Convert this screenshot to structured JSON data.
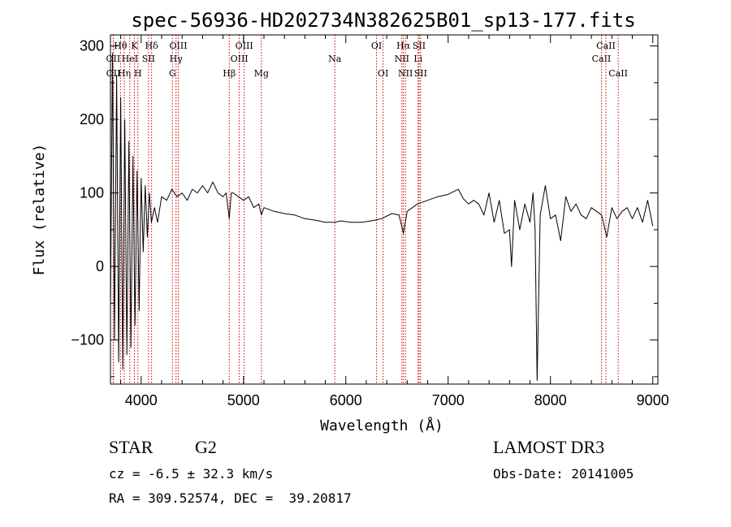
{
  "chart_data": {
    "type": "line",
    "title": "spec-56936-HD202734N382625B01_sp13-177.fits",
    "xlabel": "Wavelength (Å)",
    "ylabel": "Flux (relative)",
    "xlim": [
      3700,
      9050
    ],
    "ylim": [
      -160,
      315
    ],
    "x_ticks": [
      4000,
      5000,
      6000,
      7000,
      8000,
      9000
    ],
    "y_ticks": [
      -100,
      0,
      100,
      200,
      300
    ],
    "grid": false,
    "line_color": "#000000",
    "marker_color": "#cc0000",
    "series": [
      {
        "x": [
          3700,
          3720,
          3740,
          3760,
          3780,
          3800,
          3820,
          3840,
          3860,
          3880,
          3900,
          3920,
          3940,
          3960,
          3980,
          4000,
          4020,
          4040,
          4060,
          4080,
          4100,
          4130,
          4160,
          4200,
          4250,
          4300,
          4350,
          4400,
          4450,
          4500,
          4550,
          4600,
          4650,
          4700,
          4750,
          4800,
          4830,
          4861,
          4880,
          4900,
          4950,
          5000,
          5050,
          5100,
          5150,
          5175,
          5200,
          5300,
          5400,
          5500,
          5600,
          5700,
          5800,
          5893,
          5950,
          6050,
          6150,
          6250,
          6350,
          6450,
          6520,
          6563,
          6600,
          6700,
          6800,
          6900,
          7000,
          7100,
          7150,
          7200,
          7250,
          7300,
          7350,
          7400,
          7450,
          7500,
          7550,
          7600,
          7620,
          7650,
          7700,
          7750,
          7800,
          7830,
          7850,
          7870,
          7900,
          7950,
          8000,
          8050,
          8100,
          8150,
          8200,
          8250,
          8300,
          8350,
          8400,
          8450,
          8500,
          8550,
          8600,
          8650,
          8700,
          8750,
          8800,
          8850,
          8900,
          8950,
          9000
        ],
        "y": [
          -60,
          290,
          -100,
          260,
          -130,
          230,
          -140,
          200,
          -120,
          170,
          -110,
          150,
          -80,
          130,
          -60,
          120,
          20,
          110,
          40,
          100,
          60,
          80,
          60,
          95,
          90,
          105,
          95,
          100,
          90,
          105,
          100,
          110,
          100,
          115,
          100,
          95,
          100,
          65,
          100,
          100,
          95,
          90,
          95,
          80,
          85,
          70,
          80,
          75,
          72,
          70,
          65,
          63,
          60,
          60,
          62,
          60,
          60,
          62,
          65,
          72,
          70,
          45,
          75,
          85,
          90,
          95,
          98,
          105,
          92,
          85,
          90,
          85,
          70,
          100,
          60,
          90,
          45,
          50,
          0,
          90,
          50,
          85,
          60,
          100,
          50,
          -155,
          70,
          110,
          65,
          70,
          35,
          95,
          75,
          85,
          70,
          65,
          80,
          75,
          70,
          40,
          80,
          65,
          75,
          80,
          65,
          80,
          60,
          90,
          55
        ]
      }
    ],
    "line_markers": [
      {
        "label": "OII",
        "x": 3727,
        "row": 2
      },
      {
        "label": "OII",
        "x": 3729,
        "row": 3
      },
      {
        "label": "Hθ",
        "x": 3798,
        "row": 1
      },
      {
        "label": "Hη",
        "x": 3835,
        "row": 3
      },
      {
        "label": "HeI",
        "x": 3889,
        "row": 2
      },
      {
        "label": "K",
        "x": 3934,
        "row": 1
      },
      {
        "label": "H",
        "x": 3968,
        "row": 3
      },
      {
        "label": "SII",
        "x": 4072,
        "row": 2
      },
      {
        "label": "Hδ",
        "x": 4102,
        "row": 1
      },
      {
        "label": "G",
        "x": 4305,
        "row": 3
      },
      {
        "label": "OIII",
        "x": 4363,
        "row": 1
      },
      {
        "label": "Hγ",
        "x": 4341,
        "row": 2
      },
      {
        "label": "Hβ",
        "x": 4861,
        "row": 3
      },
      {
        "label": "OIII",
        "x": 4959,
        "row": 2
      },
      {
        "label": "OIII",
        "x": 5007,
        "row": 1
      },
      {
        "label": "Mg",
        "x": 5175,
        "row": 3
      },
      {
        "label": "Na",
        "x": 5893,
        "row": 2
      },
      {
        "label": "OI",
        "x": 6300,
        "row": 1
      },
      {
        "label": "OI",
        "x": 6364,
        "row": 3
      },
      {
        "label": "NII",
        "x": 6548,
        "row": 2
      },
      {
        "label": "Hα",
        "x": 6563,
        "row": 1
      },
      {
        "label": "NII",
        "x": 6583,
        "row": 3
      },
      {
        "label": "Li",
        "x": 6707,
        "row": 2
      },
      {
        "label": "SII",
        "x": 6716,
        "row": 1
      },
      {
        "label": "SII",
        "x": 6731,
        "row": 3
      },
      {
        "label": "CaII",
        "x": 8498,
        "row": 2
      },
      {
        "label": "CaII",
        "x": 8542,
        "row": 1
      },
      {
        "label": "CaII",
        "x": 8662,
        "row": 3
      }
    ]
  },
  "info": {
    "object_type": "STAR",
    "subclass": "G2",
    "survey": "LAMOST DR3",
    "redshift_line": "cz = -6.5 ± 32.3 km/s",
    "obs_date_line": "Obs-Date: 20141005",
    "coords_line": "RA = 309.52574, DEC =  39.20817"
  }
}
